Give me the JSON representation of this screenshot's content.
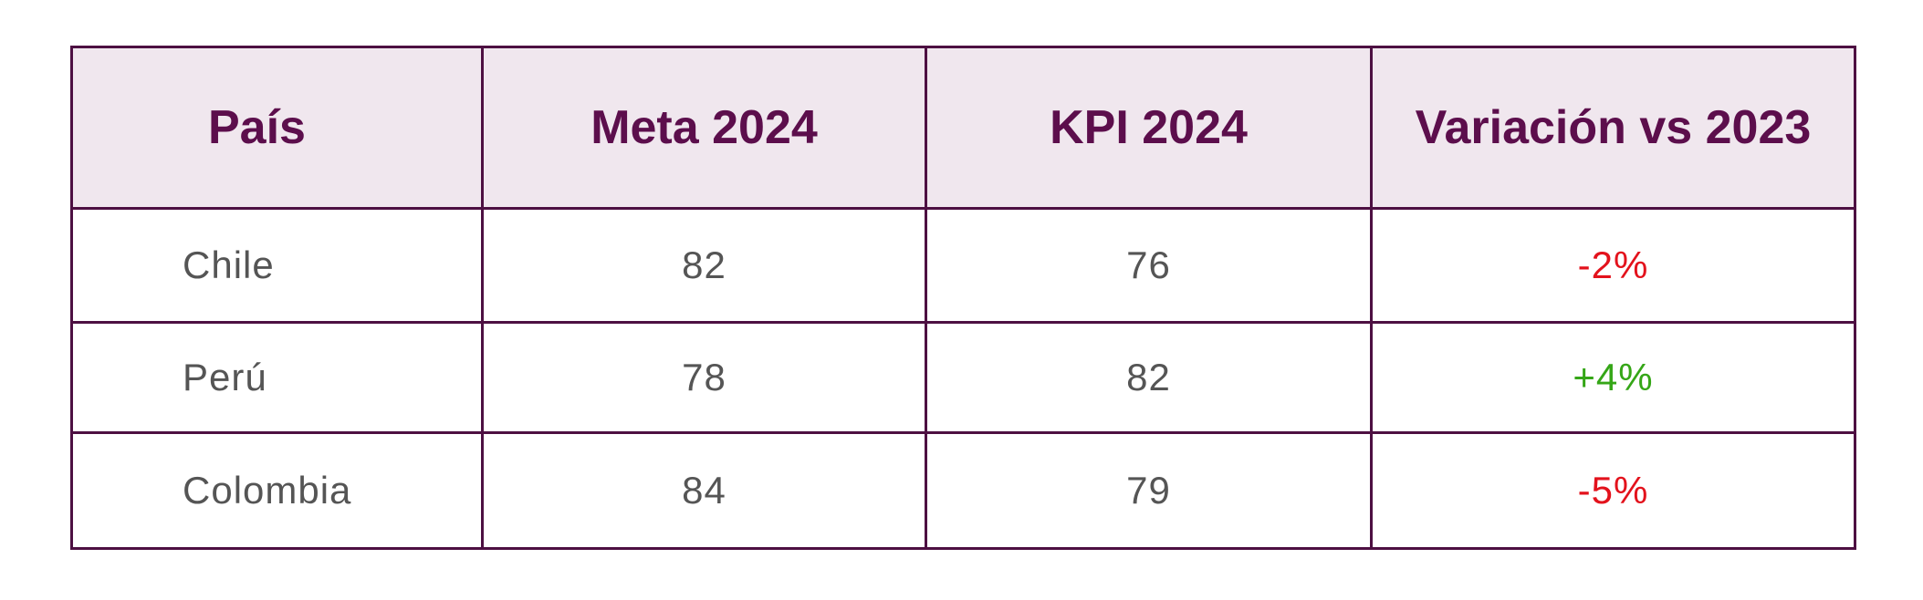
{
  "table": {
    "headers": {
      "country": "País",
      "goal": "Meta 2024",
      "kpi": "KPI 2024",
      "variation": "Variación vs 2023"
    },
    "rows": [
      {
        "country": "Chile",
        "goal": "82",
        "kpi": "76",
        "variation": "-2%",
        "trend": "negative"
      },
      {
        "country": "Perú",
        "goal": "78",
        "kpi": "82",
        "variation": "+4%",
        "trend": "positive"
      },
      {
        "country": "Colombia",
        "goal": "84",
        "kpi": "79",
        "variation": "-5%",
        "trend": "negative"
      }
    ]
  },
  "colors": {
    "border": "#4d1042",
    "header_background": "#f0e7ee",
    "header_text": "#5c0e4c",
    "cell_text": "#555555",
    "negative": "#e3121c",
    "positive": "#35a617"
  }
}
